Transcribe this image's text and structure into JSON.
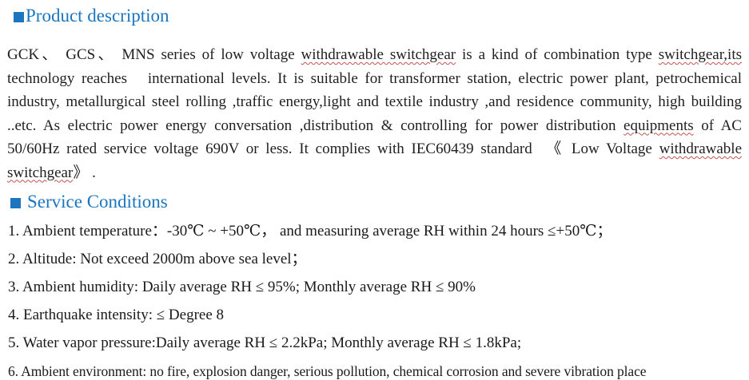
{
  "colors": {
    "heading_blue": "#1b76bf",
    "body_text": "#1f1f1f",
    "spellcheck_red": "#c5524e",
    "background": "#ffffff"
  },
  "product_description": {
    "heading": "Product description",
    "paragraph_segments": [
      {
        "text": "GCK、 GCS、 MNS series of low voltage ",
        "spellcheck": false
      },
      {
        "text": "withdrawable switchgear",
        "spellcheck": true
      },
      {
        "text": " is a kind of combination type ",
        "spellcheck": false
      },
      {
        "text": "switchgear,its",
        "spellcheck": true
      },
      {
        "text": " technology reaches   international levels. It is suitable for transformer station, electric power plant, petrochemical industry, metallurgical steel rolling ,traffic energy,light and textile industry ,and residence community, high building ..etc. As electric power energy conversation ,distribution & controlling for power distribution ",
        "spellcheck": false
      },
      {
        "text": "equipments",
        "spellcheck": true
      },
      {
        "text": " of AC 50/60Hz rated service voltage 690V or less. It complies with IEC60439 standard  《 Low Voltage ",
        "spellcheck": false
      },
      {
        "text": "withdrawable switchgear",
        "spellcheck": true
      },
      {
        "text": "》 .",
        "spellcheck": false
      }
    ]
  },
  "service_conditions": {
    "heading": "Service Conditions",
    "items": [
      "1. Ambient temperature：-30℃ ~ +50℃， and measuring average RH within 24 hours ≤+50℃；",
      "2. Altitude: Not exceed 2000m above sea level；",
      "3. Ambient humidity: Daily average RH ≤ 95%; Monthly average RH ≤ 90%",
      "4. Earthquake intensity: ≤ Degree 8",
      "5. Water vapor pressure:Daily average RH ≤ 2.2kPa; Monthly average RH ≤ 1.8kPa;",
      "6. Ambient environment: no fire, explosion danger, serious pollution, chemical corrosion and severe vibration place"
    ]
  }
}
